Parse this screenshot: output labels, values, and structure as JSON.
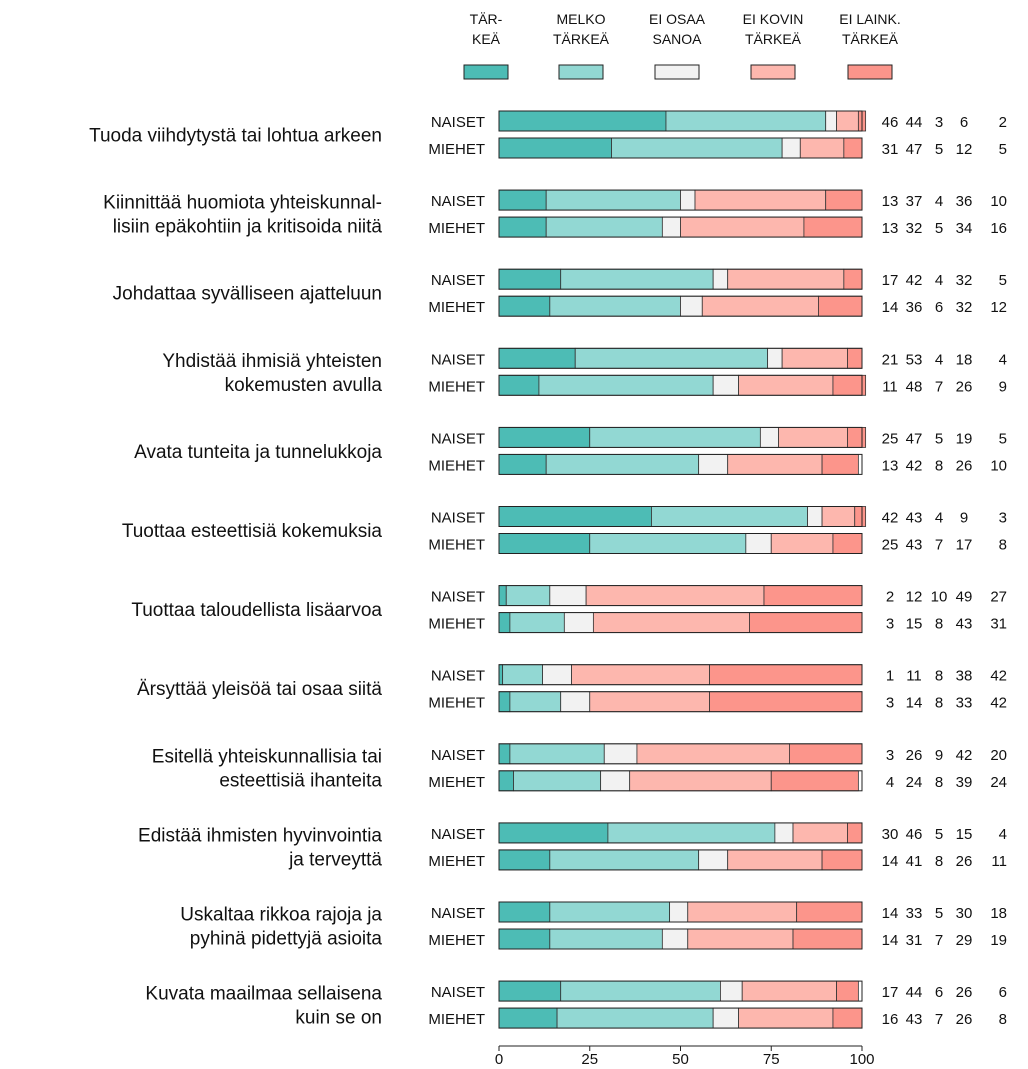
{
  "chart_data": {
    "type": "bar",
    "orientation": "horizontal",
    "stacked": true,
    "xlim": [
      0,
      100
    ],
    "x_ticks": [
      "0",
      "25",
      "50",
      "75",
      "100"
    ],
    "grid": false,
    "legend_position": "top",
    "series": [
      {
        "name": [
          "TÄR-",
          "KEÄ"
        ],
        "color": "#4dbcb5"
      },
      {
        "name": [
          "MELKO",
          "TÄRKEÄ"
        ],
        "color": "#92d8d3"
      },
      {
        "name": [
          "EI OSAA",
          "SANOA"
        ],
        "color": "#f2f2f2"
      },
      {
        "name": [
          "EI KOVIN",
          "TÄRKEÄ"
        ],
        "color": "#fdb7ae"
      },
      {
        "name": [
          "EI LAINK.",
          "TÄRKEÄ"
        ],
        "color": "#fc958b"
      }
    ],
    "group_labels": [
      "NAISET",
      "MIEHET"
    ],
    "questions": [
      {
        "label": [
          "Tuoda viihdytystä tai lohtua arkeen"
        ],
        "rows": [
          [
            46,
            44,
            3,
            6,
            2
          ],
          [
            31,
            47,
            5,
            12,
            5
          ]
        ]
      },
      {
        "label": [
          "Kiinnittää huomiota yhteiskunnal-",
          "lisiin epäkohtiin ja kritisoida niitä"
        ],
        "rows": [
          [
            13,
            37,
            4,
            36,
            10
          ],
          [
            13,
            32,
            5,
            34,
            16
          ]
        ]
      },
      {
        "label": [
          "Johdattaa syvälliseen ajatteluun"
        ],
        "rows": [
          [
            17,
            42,
            4,
            32,
            5
          ],
          [
            14,
            36,
            6,
            32,
            12
          ]
        ]
      },
      {
        "label": [
          "Yhdistää ihmisiä yhteisten",
          "kokemusten avulla"
        ],
        "rows": [
          [
            21,
            53,
            4,
            18,
            4
          ],
          [
            11,
            48,
            7,
            26,
            9
          ]
        ]
      },
      {
        "label": [
          "Avata tunteita ja tunnelukkoja"
        ],
        "rows": [
          [
            25,
            47,
            5,
            19,
            5
          ],
          [
            13,
            42,
            8,
            26,
            10
          ]
        ]
      },
      {
        "label": [
          "Tuottaa esteettisiä kokemuksia"
        ],
        "rows": [
          [
            42,
            43,
            4,
            9,
            3
          ],
          [
            25,
            43,
            7,
            17,
            8
          ]
        ]
      },
      {
        "label": [
          "Tuottaa taloudellista lisäarvoa"
        ],
        "rows": [
          [
            2,
            12,
            10,
            49,
            27
          ],
          [
            3,
            15,
            8,
            43,
            31
          ]
        ]
      },
      {
        "label": [
          "Ärsyttää yleisöä tai osaa siitä"
        ],
        "rows": [
          [
            1,
            11,
            8,
            38,
            42
          ],
          [
            3,
            14,
            8,
            33,
            42
          ]
        ]
      },
      {
        "label": [
          "Esitellä yhteiskunnallisia tai",
          "esteettisiä ihanteita"
        ],
        "rows": [
          [
            3,
            26,
            9,
            42,
            20
          ],
          [
            4,
            24,
            8,
            39,
            24
          ]
        ]
      },
      {
        "label": [
          "Edistää ihmisten hyvinvointia",
          "ja terveyttä"
        ],
        "rows": [
          [
            30,
            46,
            5,
            15,
            4
          ],
          [
            14,
            41,
            8,
            26,
            11
          ]
        ]
      },
      {
        "label": [
          "Uskaltaa rikkoa rajoja ja",
          "pyhinä pidettyjä asioita"
        ],
        "rows": [
          [
            14,
            33,
            5,
            30,
            18
          ],
          [
            14,
            31,
            7,
            29,
            19
          ]
        ]
      },
      {
        "label": [
          "Kuvata maailmaa sellaisena",
          "kuin se on"
        ],
        "rows": [
          [
            17,
            44,
            6,
            26,
            6
          ],
          [
            16,
            43,
            7,
            26,
            8
          ]
        ]
      }
    ]
  }
}
